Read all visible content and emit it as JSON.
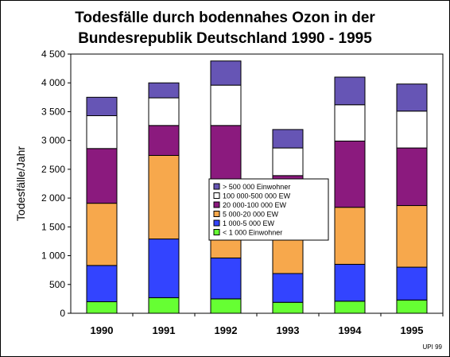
{
  "chart_data": {
    "type": "bar",
    "stacked": true,
    "title_lines": [
      "Todesfälle durch bodennahes Ozon in der",
      "Bundesrepublik Deutschland 1990 - 1995"
    ],
    "ylabel": "Todesfälle/Jahr",
    "source": "UPI 99",
    "ylim": [
      0,
      4500
    ],
    "yticks": [
      0,
      500,
      1000,
      1500,
      2000,
      2500,
      3000,
      3500,
      4000,
      4500
    ],
    "ytick_labels": [
      "0",
      "500",
      "1 000",
      "1 500",
      "2 000",
      "2 500",
      "3 000",
      "3 500",
      "4 000",
      "4 500"
    ],
    "categories": [
      "1990",
      "1991",
      "1992",
      "1993",
      "1994",
      "1995"
    ],
    "legend_position": "center",
    "series": [
      {
        "name": "< 1 000 Einwohner",
        "color": "#66ff33",
        "values": [
          200,
          270,
          250,
          190,
          210,
          230
        ]
      },
      {
        "name": "1 000-5 000 EW",
        "color": "#3344ff",
        "values": [
          630,
          1020,
          710,
          500,
          640,
          570
        ]
      },
      {
        "name": "5 000-20 000 EW",
        "color": "#f7a84c",
        "values": [
          1080,
          1450,
          1160,
          1000,
          990,
          1070
        ]
      },
      {
        "name": "20 000-100 000 EW",
        "color": "#8b1a7e",
        "values": [
          950,
          520,
          1140,
          700,
          1150,
          1000
        ]
      },
      {
        "name": "100 000-500 000 EW",
        "color": "#ffffff",
        "values": [
          570,
          480,
          700,
          480,
          630,
          640
        ]
      },
      {
        "name": "> 500 000 Einwohner",
        "color": "#6655b5",
        "values": [
          320,
          260,
          420,
          320,
          480,
          470
        ]
      }
    ]
  }
}
